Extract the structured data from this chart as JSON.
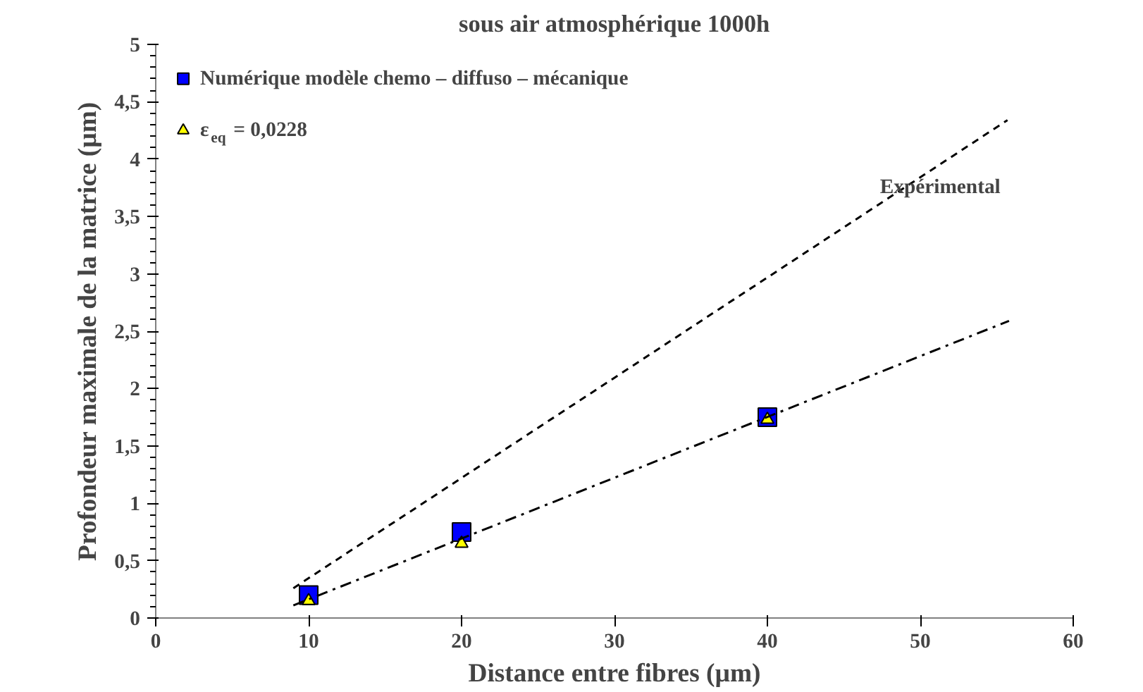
{
  "chart_data": {
    "type": "scatter",
    "title": "sous air atmosphérique 1000h",
    "xlabel": "Distance entre fibres (µm)",
    "ylabel": "Profondeur maximale de la matrice (µm)",
    "xlim": [
      0,
      60
    ],
    "xticks": [
      0,
      10,
      20,
      30,
      40,
      50,
      60
    ],
    "ylim": [
      0,
      5
    ],
    "yticks": [
      0,
      {
        "value": 0.5,
        "label": "0,5"
      },
      1,
      {
        "value": 1.5,
        "label": "1,5"
      },
      2,
      {
        "value": 2.5,
        "label": "2,5"
      },
      3,
      {
        "value": 3.5,
        "label": "3,5"
      },
      4,
      {
        "value": 4.5,
        "label": "4,5"
      },
      5
    ],
    "grid": false,
    "legend": "top left",
    "series": [
      {
        "name": "Numérique modèle chemo – diffuso – mécanique",
        "type": "scatter",
        "marker": "square",
        "color": "#0000ff",
        "x": [
          10,
          20,
          40
        ],
        "values": [
          0.2,
          0.75,
          1.75
        ]
      },
      {
        "name": "ε$_{eq}$ = 0,0228",
        "type": "scatter",
        "marker": "triangle",
        "color": "#ffff00",
        "x": [
          10,
          20,
          40
        ],
        "values": [
          0.15,
          0.65,
          1.73
        ]
      },
      {
        "name": "Expérimental",
        "type": "line",
        "line_style": "dashed",
        "color": "#000000",
        "x": [
          9,
          55.7
        ],
        "values": [
          0.26,
          4.34
        ]
      },
      {
        "type": "line",
        "line_style": "dashdot",
        "color": "#000000",
        "x": [
          9,
          55.8
        ],
        "values": [
          0.11,
          2.59
        ]
      }
    ]
  }
}
